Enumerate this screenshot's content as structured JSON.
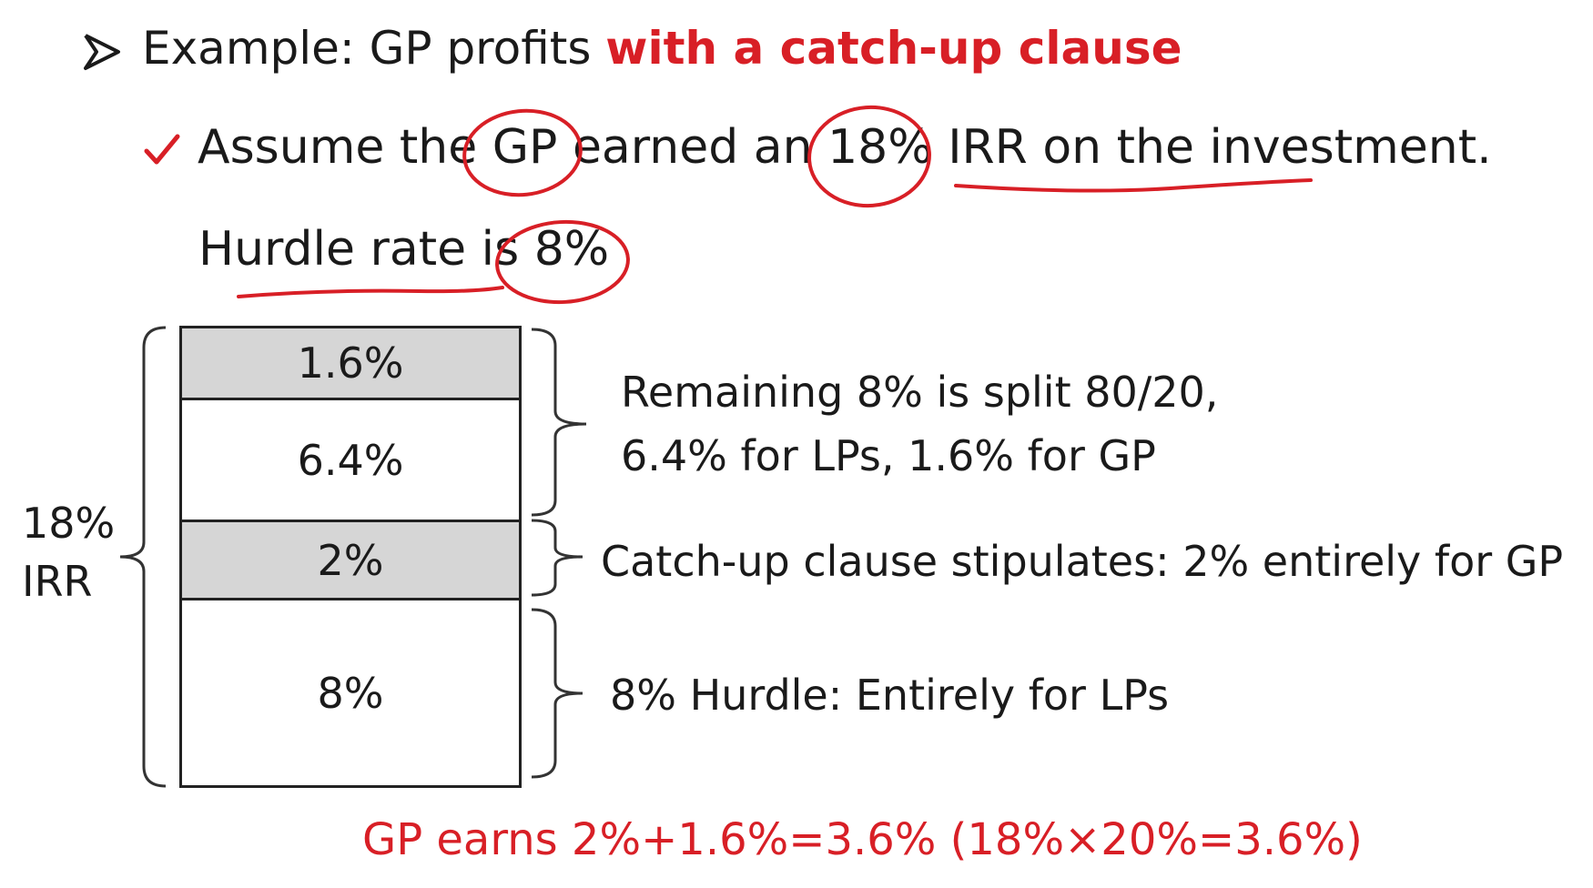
{
  "heading": {
    "prefix": "Example: GP profits ",
    "emphasis": "with a catch-up clause",
    "bullet_icon": "arrow-bullet-icon"
  },
  "assumption": {
    "text": "Assume the GP earned an 18% IRR on the investment.",
    "bullet_icon": "checkmark-icon",
    "hurdle_text": "Hurdle rate is 8%"
  },
  "diagram": {
    "total_label": "18%\nIRR",
    "segments": [
      {
        "label": "1.6%",
        "fill": "grey",
        "value": 1.6
      },
      {
        "label": "6.4%",
        "fill": "white",
        "value": 6.4
      },
      {
        "label": "2%",
        "fill": "grey",
        "value": 2
      },
      {
        "label": "8%",
        "fill": "white",
        "value": 8
      }
    ],
    "notes": {
      "split_line1": "Remaining 8% is split 80/20,",
      "split_line2": "6.4% for LPs, 1.6% for GP",
      "catchup": "Catch-up clause stipulates: 2% entirely for GP",
      "hurdle": "8% Hurdle: Entirely for LPs"
    }
  },
  "summary": "GP earns 2%+1.6%=3.6% (18%×20%=3.6%)",
  "colors": {
    "accent": "#d81f26",
    "text": "#1a1a1a",
    "grey_fill": "#d6d6d6"
  }
}
